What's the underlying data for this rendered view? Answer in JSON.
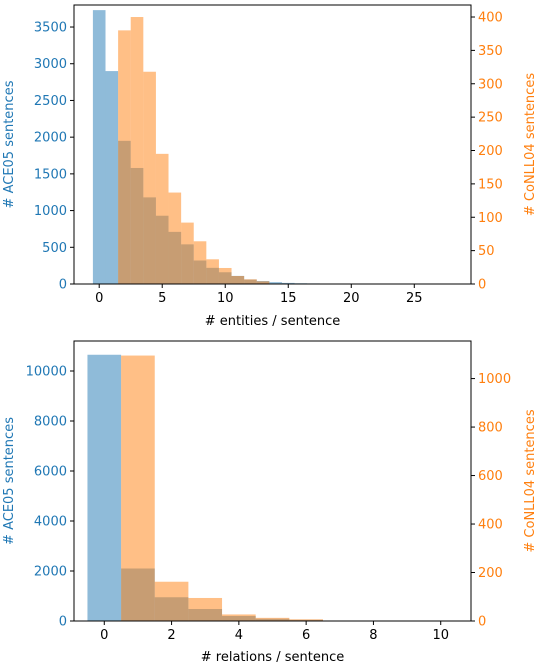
{
  "colors": {
    "ace05": "#1f77b4",
    "conll04": "#ff7f0e",
    "ace05_fill": "#1f77b4",
    "conll04_fill": "#ff7f0e",
    "axis": "#000000",
    "background": "#ffffff"
  },
  "chart_data": [
    {
      "type": "bar",
      "xlabel": "# entities / sentence",
      "ylabel_left": "# ACE05 sentences",
      "ylabel_right": "# CoNLL04 sentences",
      "xlim": [
        -2,
        29.5
      ],
      "ylim_left": [
        0,
        3800
      ],
      "ylim_right": [
        0,
        418
      ],
      "xticks": [
        0,
        5,
        10,
        15,
        20,
        25
      ],
      "yticks_left": [
        0,
        500,
        1000,
        1500,
        2000,
        2500,
        3000,
        3500
      ],
      "yticks_right": [
        0,
        50,
        100,
        150,
        200,
        250,
        300,
        350,
        400
      ],
      "bin_width": 1,
      "series": [
        {
          "axis": "left",
          "bin_centers": [
            0,
            1,
            2,
            3,
            4,
            5,
            6,
            7,
            8,
            9,
            10,
            11,
            12,
            13,
            14,
            15,
            16,
            17,
            18,
            19,
            20,
            21,
            22,
            23,
            24,
            25,
            26,
            27,
            28
          ],
          "values": [
            3730,
            2900,
            1950,
            1580,
            1180,
            930,
            710,
            540,
            320,
            220,
            160,
            110,
            60,
            40,
            25,
            15,
            10,
            8,
            6,
            5,
            4,
            3,
            3,
            2,
            2,
            2,
            1,
            1,
            1
          ]
        },
        {
          "axis": "right",
          "bin_centers": [
            2,
            3,
            4,
            5,
            6,
            7,
            8,
            9,
            10,
            11,
            12,
            13
          ],
          "values": [
            380,
            400,
            318,
            195,
            137,
            92,
            64,
            37,
            24,
            12,
            7,
            4
          ]
        }
      ]
    },
    {
      "type": "bar",
      "xlabel": "# relations / sentence",
      "ylabel_left": "# ACE05 sentences",
      "ylabel_right": "# CoNLL04 sentences",
      "xlim": [
        -0.9,
        10.9
      ],
      "ylim_left": [
        0,
        11200
      ],
      "ylim_right": [
        0,
        1155
      ],
      "xticks": [
        0,
        2,
        4,
        6,
        8,
        10
      ],
      "yticks_left": [
        0,
        2000,
        4000,
        6000,
        8000,
        10000
      ],
      "yticks_right": [
        0,
        200,
        400,
        600,
        800,
        1000
      ],
      "bin_width": 1,
      "series": [
        {
          "axis": "left",
          "bin_centers": [
            0,
            1,
            2,
            3,
            4,
            5,
            6,
            7,
            8,
            9,
            10
          ],
          "values": [
            10650,
            2100,
            950,
            480,
            200,
            90,
            45,
            20,
            10,
            5,
            3
          ]
        },
        {
          "axis": "right",
          "bin_centers": [
            1,
            2,
            3,
            4,
            5,
            6
          ],
          "values": [
            1095,
            162,
            95,
            27,
            13,
            7
          ]
        }
      ]
    }
  ]
}
